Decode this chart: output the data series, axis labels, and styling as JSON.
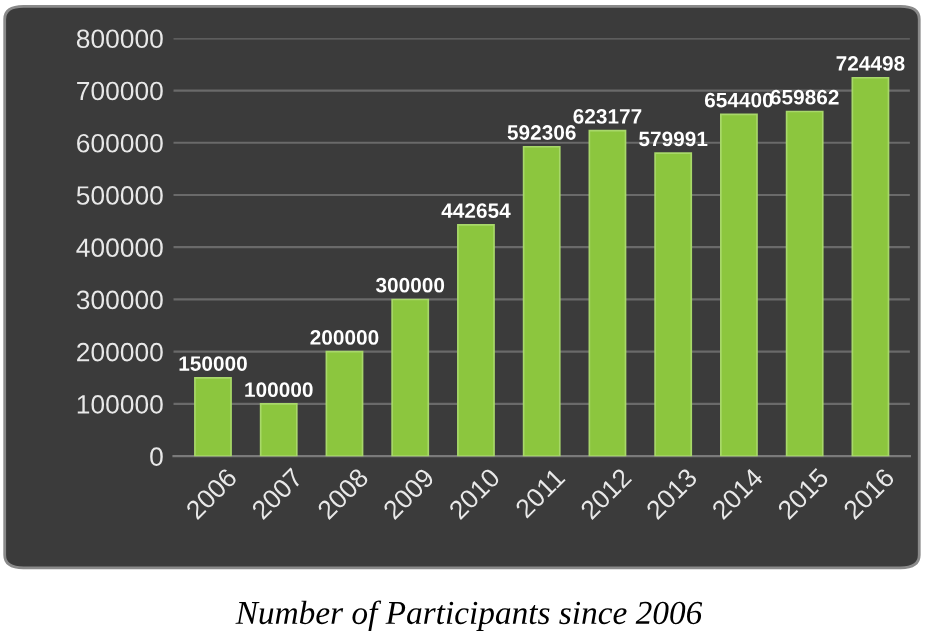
{
  "chart_data": {
    "type": "bar",
    "categories": [
      "2006",
      "2007",
      "2008",
      "2009",
      "2010",
      "2011",
      "2012",
      "2013",
      "2014",
      "2015",
      "2016"
    ],
    "values": [
      150000,
      100000,
      200000,
      300000,
      442654,
      592306,
      623177,
      579991,
      654400,
      659862,
      724498
    ],
    "color": "#8cc63e",
    "ylim": [
      0,
      800000
    ],
    "yticks": [
      0,
      100000,
      200000,
      300000,
      400000,
      500000,
      600000,
      700000,
      800000
    ],
    "grid": "y",
    "data_labels": true,
    "annotations": [
      "Number of Participants since 2006"
    ]
  }
}
